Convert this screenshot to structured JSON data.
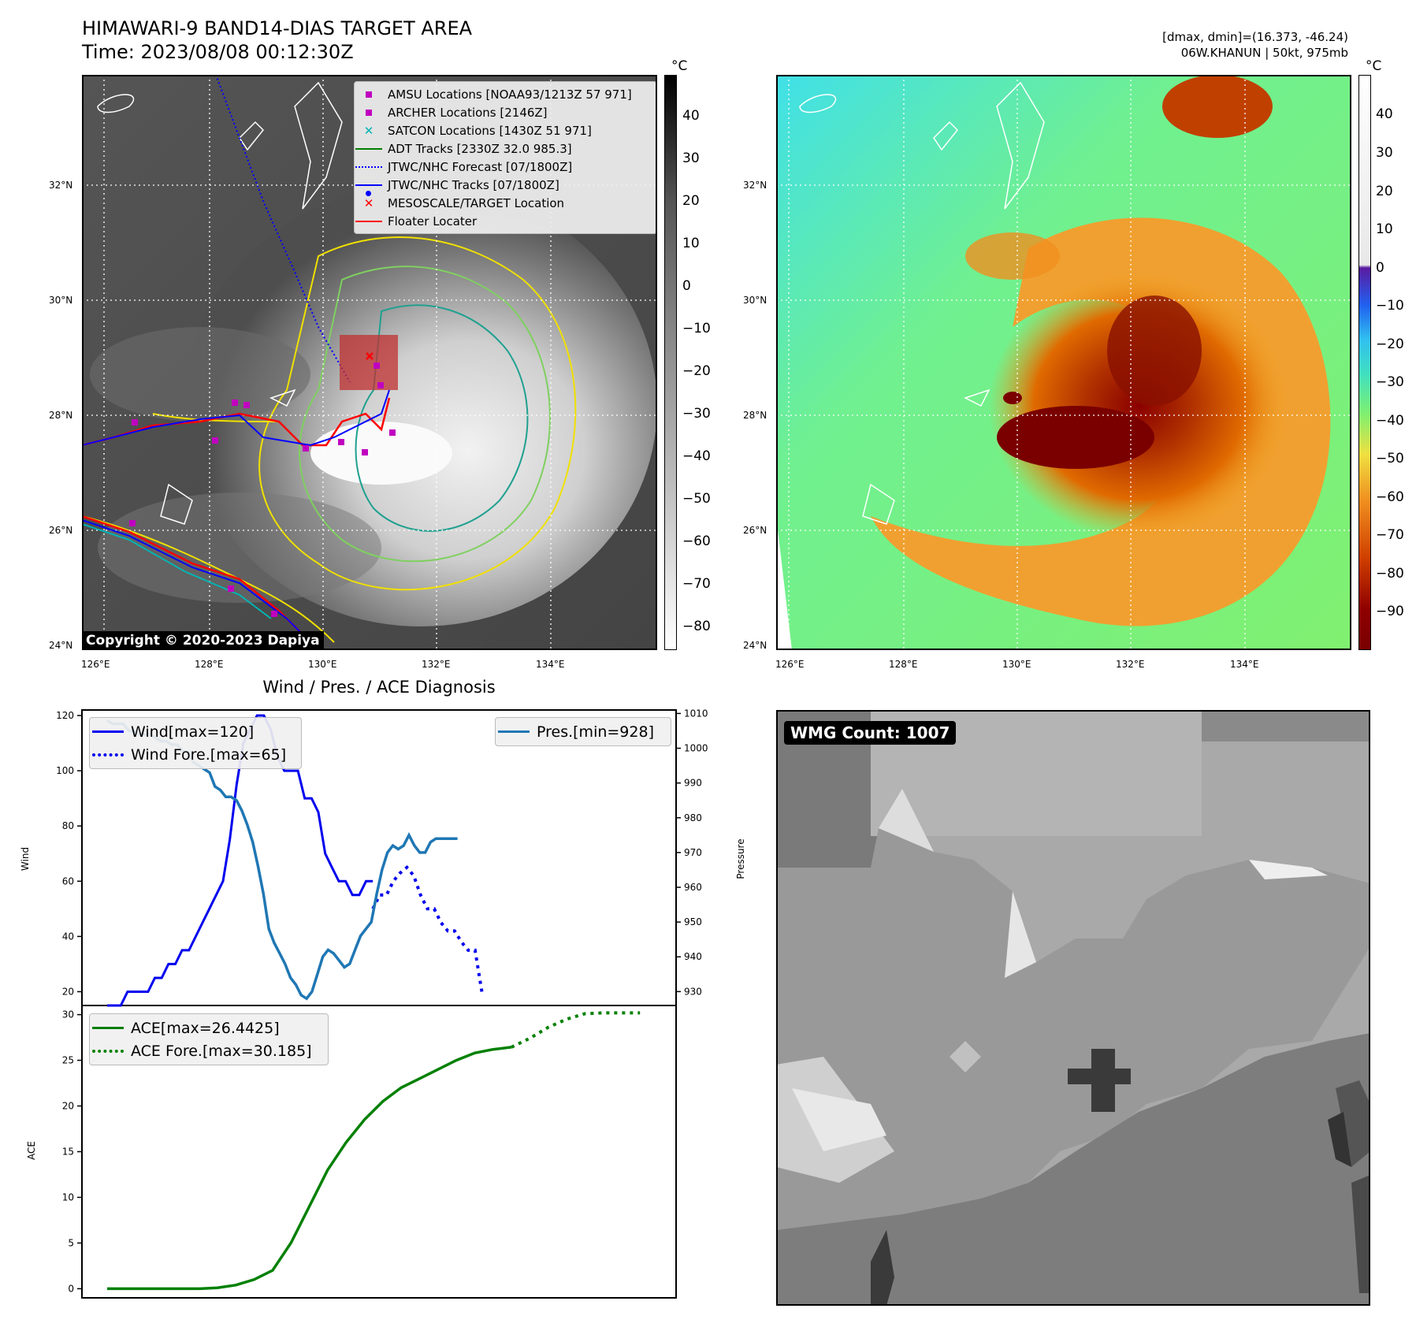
{
  "header": {
    "title_line1": "HIMAWARI-9 BAND14-DIAS TARGET AREA",
    "title_line2": "Time: 2023/08/08 00:12:30Z",
    "right_line1": "[dmax, dmin]=(16.373, -46.24)",
    "right_line2": "06W.KHANUN | 50kt, 975mb"
  },
  "maps": {
    "lat_labels": [
      "32°N",
      "30°N",
      "28°N",
      "26°N",
      "24°N"
    ],
    "lon_labels": [
      "126°E",
      "128°E",
      "130°E",
      "132°E",
      "134°E"
    ],
    "colorbar_unit": "°C",
    "colorbar_left_ticks": [
      "40",
      "30",
      "20",
      "10",
      "0",
      "−10",
      "−20",
      "−30",
      "−40",
      "−50",
      "−60",
      "−70",
      "−80"
    ],
    "colorbar_right_ticks": [
      "40",
      "30",
      "20",
      "10",
      "0",
      "−10",
      "−20",
      "−30",
      "−40",
      "−50",
      "−60",
      "−70",
      "−80",
      "−90"
    ],
    "copyright": "Copyright © 2020-2023 Dapiya",
    "legend": [
      {
        "label": "AMSU Locations [NOAA93/1213Z 57 971]",
        "marker": "square",
        "color": "#c000c0"
      },
      {
        "label": "ARCHER Locations [2146Z]",
        "marker": "square",
        "color": "#c000c0"
      },
      {
        "label": "SATCON Locations [1430Z 51 971]",
        "marker": "x",
        "color": "#00b4b4"
      },
      {
        "label": "ADT Tracks [2330Z 32.0 985.3]",
        "marker": "line",
        "color": "#008000"
      },
      {
        "label": "JTWC/NHC Forecast [07/1800Z]",
        "marker": "dotted",
        "color": "#0000ff"
      },
      {
        "label": "JTWC/NHC Tracks [07/1800Z]",
        "marker": "line-dot",
        "color": "#0000ff"
      },
      {
        "label": "MESOSCALE/TARGET Location",
        "marker": "x",
        "color": "#ff0000"
      },
      {
        "label": "Floater Locater",
        "marker": "line",
        "color": "#ff0000"
      }
    ]
  },
  "diag": {
    "title": "Wind / Pres. / ACE Diagnosis",
    "wind_ylabel": "Wind",
    "pres_ylabel": "Pressure",
    "ace_ylabel": "ACE",
    "wind_ticks": [
      "120",
      "100",
      "80",
      "60",
      "40",
      "20"
    ],
    "pres_ticks": [
      "1010",
      "1000",
      "990",
      "980",
      "970",
      "960",
      "950",
      "940",
      "930"
    ],
    "ace_ticks": [
      "30",
      "25",
      "20",
      "15",
      "10",
      "5",
      "0"
    ],
    "legend_wind": "Wind[max=120]",
    "legend_wind_fore": "Wind Fore.[max=65]",
    "legend_pres": "Pres.[min=928]",
    "legend_ace": "ACE[max=26.4425]",
    "legend_ace_fore": "ACE Fore.[max=30.185]"
  },
  "wmg": {
    "label": "WMG Count: 1007"
  },
  "colors": {
    "wind": "#0000ee",
    "pressure": "#1f77b4",
    "ace": "#008000",
    "amsu": "#c000c0",
    "satcon": "#00b4b4",
    "target": "#ff0000"
  },
  "chart_data": [
    {
      "type": "line",
      "title": "Wind / Pres. / ACE Diagnosis",
      "ylabel": "Wind",
      "ylim": [
        15,
        122
      ],
      "series": [
        {
          "name": "Wind[max=120]",
          "x": [
            0,
            2,
            4,
            6,
            8,
            10,
            12,
            14,
            16,
            18,
            20,
            22,
            24,
            26,
            28,
            30,
            32,
            34,
            36,
            38,
            40,
            42,
            44,
            46,
            48,
            50,
            52,
            54,
            56,
            58,
            60,
            62,
            64,
            66,
            68,
            70,
            72,
            74,
            76,
            78
          ],
          "values": [
            15,
            15,
            15,
            20,
            20,
            20,
            20,
            25,
            25,
            30,
            30,
            35,
            35,
            40,
            45,
            50,
            55,
            60,
            75,
            95,
            110,
            115,
            120,
            120,
            115,
            105,
            100,
            100,
            100,
            90,
            90,
            85,
            70,
            65,
            60,
            60,
            55,
            55,
            60,
            60
          ]
        },
        {
          "name": "Wind Fore.[max=65]",
          "x": [
            78,
            80,
            82,
            84,
            86,
            88,
            90,
            92,
            94,
            96,
            98,
            100,
            102,
            104,
            106,
            108,
            110
          ],
          "values": [
            50,
            55,
            55,
            60,
            63,
            65,
            62,
            55,
            50,
            50,
            45,
            42,
            42,
            38,
            35,
            35,
            20
          ]
        }
      ]
    },
    {
      "type": "line",
      "ylabel": "Pressure",
      "ylim": [
        926,
        1011
      ],
      "series": [
        {
          "name": "Pres.[min=928]",
          "x": [
            0,
            2,
            4,
            6,
            8,
            10,
            12,
            14,
            16,
            18,
            20,
            22,
            24,
            26,
            28,
            30,
            32,
            34,
            36,
            38,
            40,
            42,
            44,
            46,
            48,
            50,
            52,
            54,
            56,
            58,
            60,
            62,
            64,
            66,
            68,
            70,
            72,
            74,
            76,
            78,
            80,
            82,
            84,
            86,
            88,
            90,
            92,
            94,
            96,
            98,
            100,
            102,
            104,
            106,
            108,
            110,
            112,
            114,
            116,
            118,
            120,
            122,
            124,
            126,
            128,
            130
          ],
          "values": [
            1008,
            1007,
            1007,
            1007,
            1005,
            1005,
            1004,
            1004,
            1004,
            1003,
            1002,
            1002,
            1001,
            1001,
            999,
            999,
            996,
            995,
            994,
            993,
            989,
            988,
            986,
            986,
            985,
            982,
            978,
            973,
            966,
            958,
            948,
            944,
            941,
            938,
            934,
            932,
            929,
            928,
            930,
            935,
            940,
            942,
            941,
            939,
            937,
            938,
            942,
            946,
            948,
            950,
            958,
            965,
            970,
            972,
            971,
            972,
            975,
            972,
            970,
            970,
            973,
            974,
            974,
            974,
            974,
            974
          ]
        }
      ]
    },
    {
      "type": "line",
      "ylabel": "ACE",
      "ylim": [
        -1,
        31
      ],
      "series": [
        {
          "name": "ACE[max=26.4425]",
          "x": [
            0,
            10,
            20,
            30,
            40,
            50,
            60,
            70,
            80,
            90,
            100,
            110,
            120,
            130,
            140,
            150,
            160,
            170,
            180,
            190,
            200,
            210,
            220
          ],
          "values": [
            0,
            0,
            0,
            0,
            0,
            0,
            0.1,
            0.4,
            1,
            2,
            5,
            9,
            13,
            16,
            18.5,
            20.5,
            22,
            23,
            24,
            25,
            25.8,
            26.2,
            26.44
          ]
        },
        {
          "name": "ACE Fore.[max=30.185]",
          "x": [
            220,
            230,
            240,
            250,
            260,
            270,
            280,
            290
          ],
          "values": [
            26.44,
            27.4,
            28.6,
            29.5,
            30.1,
            30.185,
            30.185,
            30.185
          ]
        }
      ]
    }
  ]
}
